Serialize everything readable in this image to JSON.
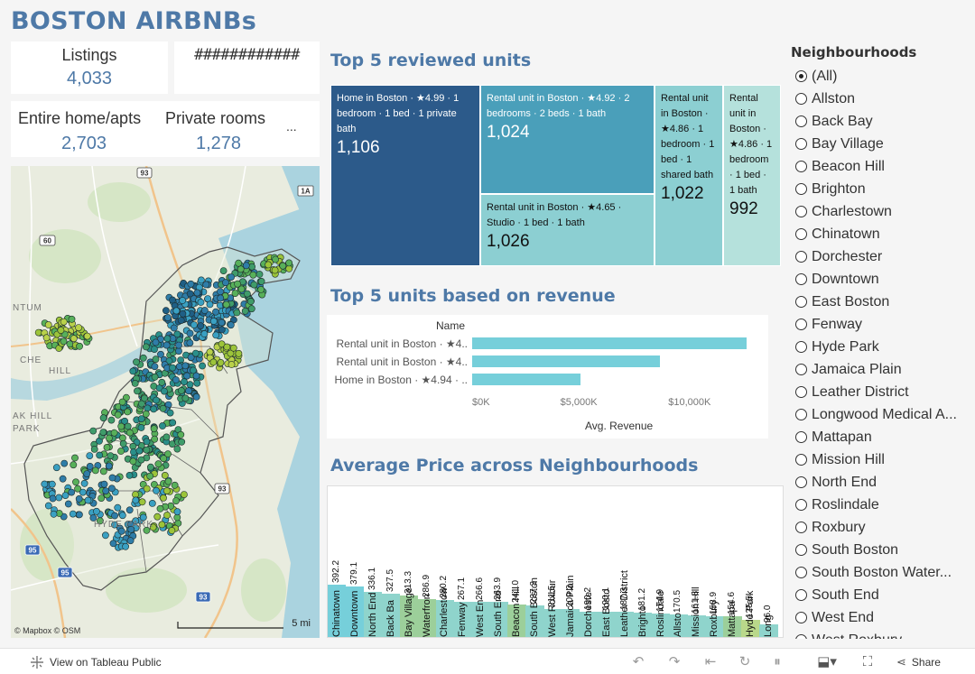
{
  "title": "BOSTON AIRBNBs",
  "kpis": {
    "listings_label": "Listings",
    "listings_value": "4,033",
    "hidden_value": "############",
    "entire_label": "Entire home/apts",
    "entire_value": "2,703",
    "private_label": "Private rooms",
    "private_value": "1,278",
    "more": "..."
  },
  "map": {
    "attribution": "© Mapbox  © OSM",
    "scale_label": "5 mi",
    "place_labels": [
      "CHE",
      "HILL",
      "NTUM",
      "AK HILL",
      "PARK",
      "HYDE PARK"
    ],
    "road_shields": [
      "93",
      "1A",
      "60",
      "93",
      "95",
      "95",
      "93"
    ]
  },
  "treemap": {
    "title": "Top 5 reviewed units",
    "cells": [
      {
        "label": "Home in Boston · ★4.99 · 1 bedroom · 1 bed · 1 private bath",
        "value": "1,106",
        "color": "#2c5a8a"
      },
      {
        "label": "Rental unit in Boston · ★4.92 · 2 bedrooms · 2 beds · 1 bath",
        "value": "1,024",
        "color": "#4a9fba"
      },
      {
        "label": "Rental unit in Boston · ★4.65 · Studio · 1 bed · 1 bath",
        "value": "1,026",
        "color": "#8ccfd2"
      },
      {
        "label": "Rental unit in Boston · ★4.86 · 1 bedroom · 1 bed · 1 shared bath",
        "value": "1,022",
        "color": "#8ccfd2"
      },
      {
        "label": "Rental unit in Boston · ★4.86 · 1 bedroom · 1 bed · 1 bath",
        "value": "992",
        "color": "#b5e1dc"
      }
    ]
  },
  "revenue": {
    "title": "Top 5 units based on revenue",
    "header": "Name",
    "axis_title": "Avg. Revenue",
    "ticks": [
      "$0K",
      "$5,000K",
      "$10,000K"
    ],
    "bar_color": "#76cfda"
  },
  "price": {
    "title": "Average Price across Neighbourhoods"
  },
  "chart_data": [
    {
      "type": "bar",
      "orientation": "horizontal",
      "title": "Top 5 units based on revenue",
      "categories": [
        "Rental unit in Boston · ★4..",
        "Rental unit in Boston · ★4..",
        "Home in Boston · ★4.94 · .."
      ],
      "values": [
        12700,
        8700,
        5000
      ],
      "xlabel": "Avg. Revenue",
      "ylabel": "Name",
      "xlim": [
        0,
        13000
      ],
      "xticks": [
        "$0K",
        "$5,000K",
        "$10,000K"
      ]
    },
    {
      "type": "bar",
      "title": "Average Price across Neighbourhoods",
      "categories": [
        "Chinatown",
        "Downtown",
        "North End",
        "Back Ba",
        "Bay Village",
        "Waterfron",
        "Charlestow",
        "Fenway",
        "West En",
        "South End",
        "Beacon Hill",
        "South Boston",
        "West Roxbur",
        "Jamaica Plain",
        "Dorcheste",
        "East Bosto",
        "Leather District",
        "Brighto",
        "Roslindale",
        "Allsto",
        "Mission Hill",
        "Roxbury",
        "Mattapa",
        "Hyde Park",
        "Long"
      ],
      "values": [
        392.2,
        379.1,
        336.1,
        327.5,
        313.3,
        286.9,
        280.2,
        267.1,
        266.6,
        263.9,
        241.0,
        237.3,
        211.5,
        209.2,
        190.2,
        190.1,
        187.3,
        181.2,
        174.9,
        170.5,
        161.8,
        158.9,
        154.6,
        125.5,
        96.0
      ],
      "value_labels": [
        "392.2",
        "379.1",
        "336.1",
        "327.5",
        "313.3",
        "286.9",
        "280.2",
        "267.1",
        "266.6",
        "263.9",
        "241.0",
        "237.3",
        "211.5",
        "209.2",
        "190.2",
        "190.1",
        "187.3",
        "181.2",
        "174.9",
        "170.5",
        "161.8",
        "158.9",
        "154.6",
        "125.5",
        "96.0"
      ],
      "colors": [
        "#76cfda",
        "#76cfda",
        "#8fd4cc",
        "#8fd4cc",
        "#9ccf9a",
        "#9ccf9a",
        "#8fd4cc",
        "#8fd4cc",
        "#8fd4cc",
        "#8fd4cc",
        "#9ccf9a",
        "#8fd4cc",
        "#8fd4cc",
        "#8fd4cc",
        "#8fd4cc",
        "#8fd4cc",
        "#8fd4cc",
        "#8fd4cc",
        "#8fd4cc",
        "#8fd4cc",
        "#8fd4cc",
        "#8fd4cc",
        "#9ccf9a",
        "#b9d88a",
        "#8fd4cc"
      ],
      "ylim": [
        0,
        420
      ]
    }
  ],
  "filter": {
    "title": "Neighbourhoods",
    "items": [
      {
        "label": "(All)",
        "checked": true
      },
      {
        "label": "Allston"
      },
      {
        "label": "Back Bay"
      },
      {
        "label": "Bay Village"
      },
      {
        "label": "Beacon Hill"
      },
      {
        "label": "Brighton"
      },
      {
        "label": "Charlestown"
      },
      {
        "label": "Chinatown"
      },
      {
        "label": "Dorchester"
      },
      {
        "label": "Downtown"
      },
      {
        "label": "East Boston"
      },
      {
        "label": "Fenway"
      },
      {
        "label": "Hyde Park"
      },
      {
        "label": "Jamaica Plain"
      },
      {
        "label": "Leather District"
      },
      {
        "label": "Longwood Medical A..."
      },
      {
        "label": "Mattapan"
      },
      {
        "label": "Mission Hill"
      },
      {
        "label": "North End"
      },
      {
        "label": "Roslindale"
      },
      {
        "label": "Roxbury"
      },
      {
        "label": "South Boston"
      },
      {
        "label": "South Boston Water..."
      },
      {
        "label": "South End"
      },
      {
        "label": "West End"
      },
      {
        "label": "West Roxbury"
      }
    ]
  },
  "footer": {
    "view_label": "View on Tableau Public",
    "share_label": "Share",
    "icons": [
      "undo-icon",
      "redo-icon",
      "revert-icon",
      "refresh-icon",
      "pause-icon",
      "download-icon",
      "fullscreen-icon",
      "share-icon"
    ]
  }
}
